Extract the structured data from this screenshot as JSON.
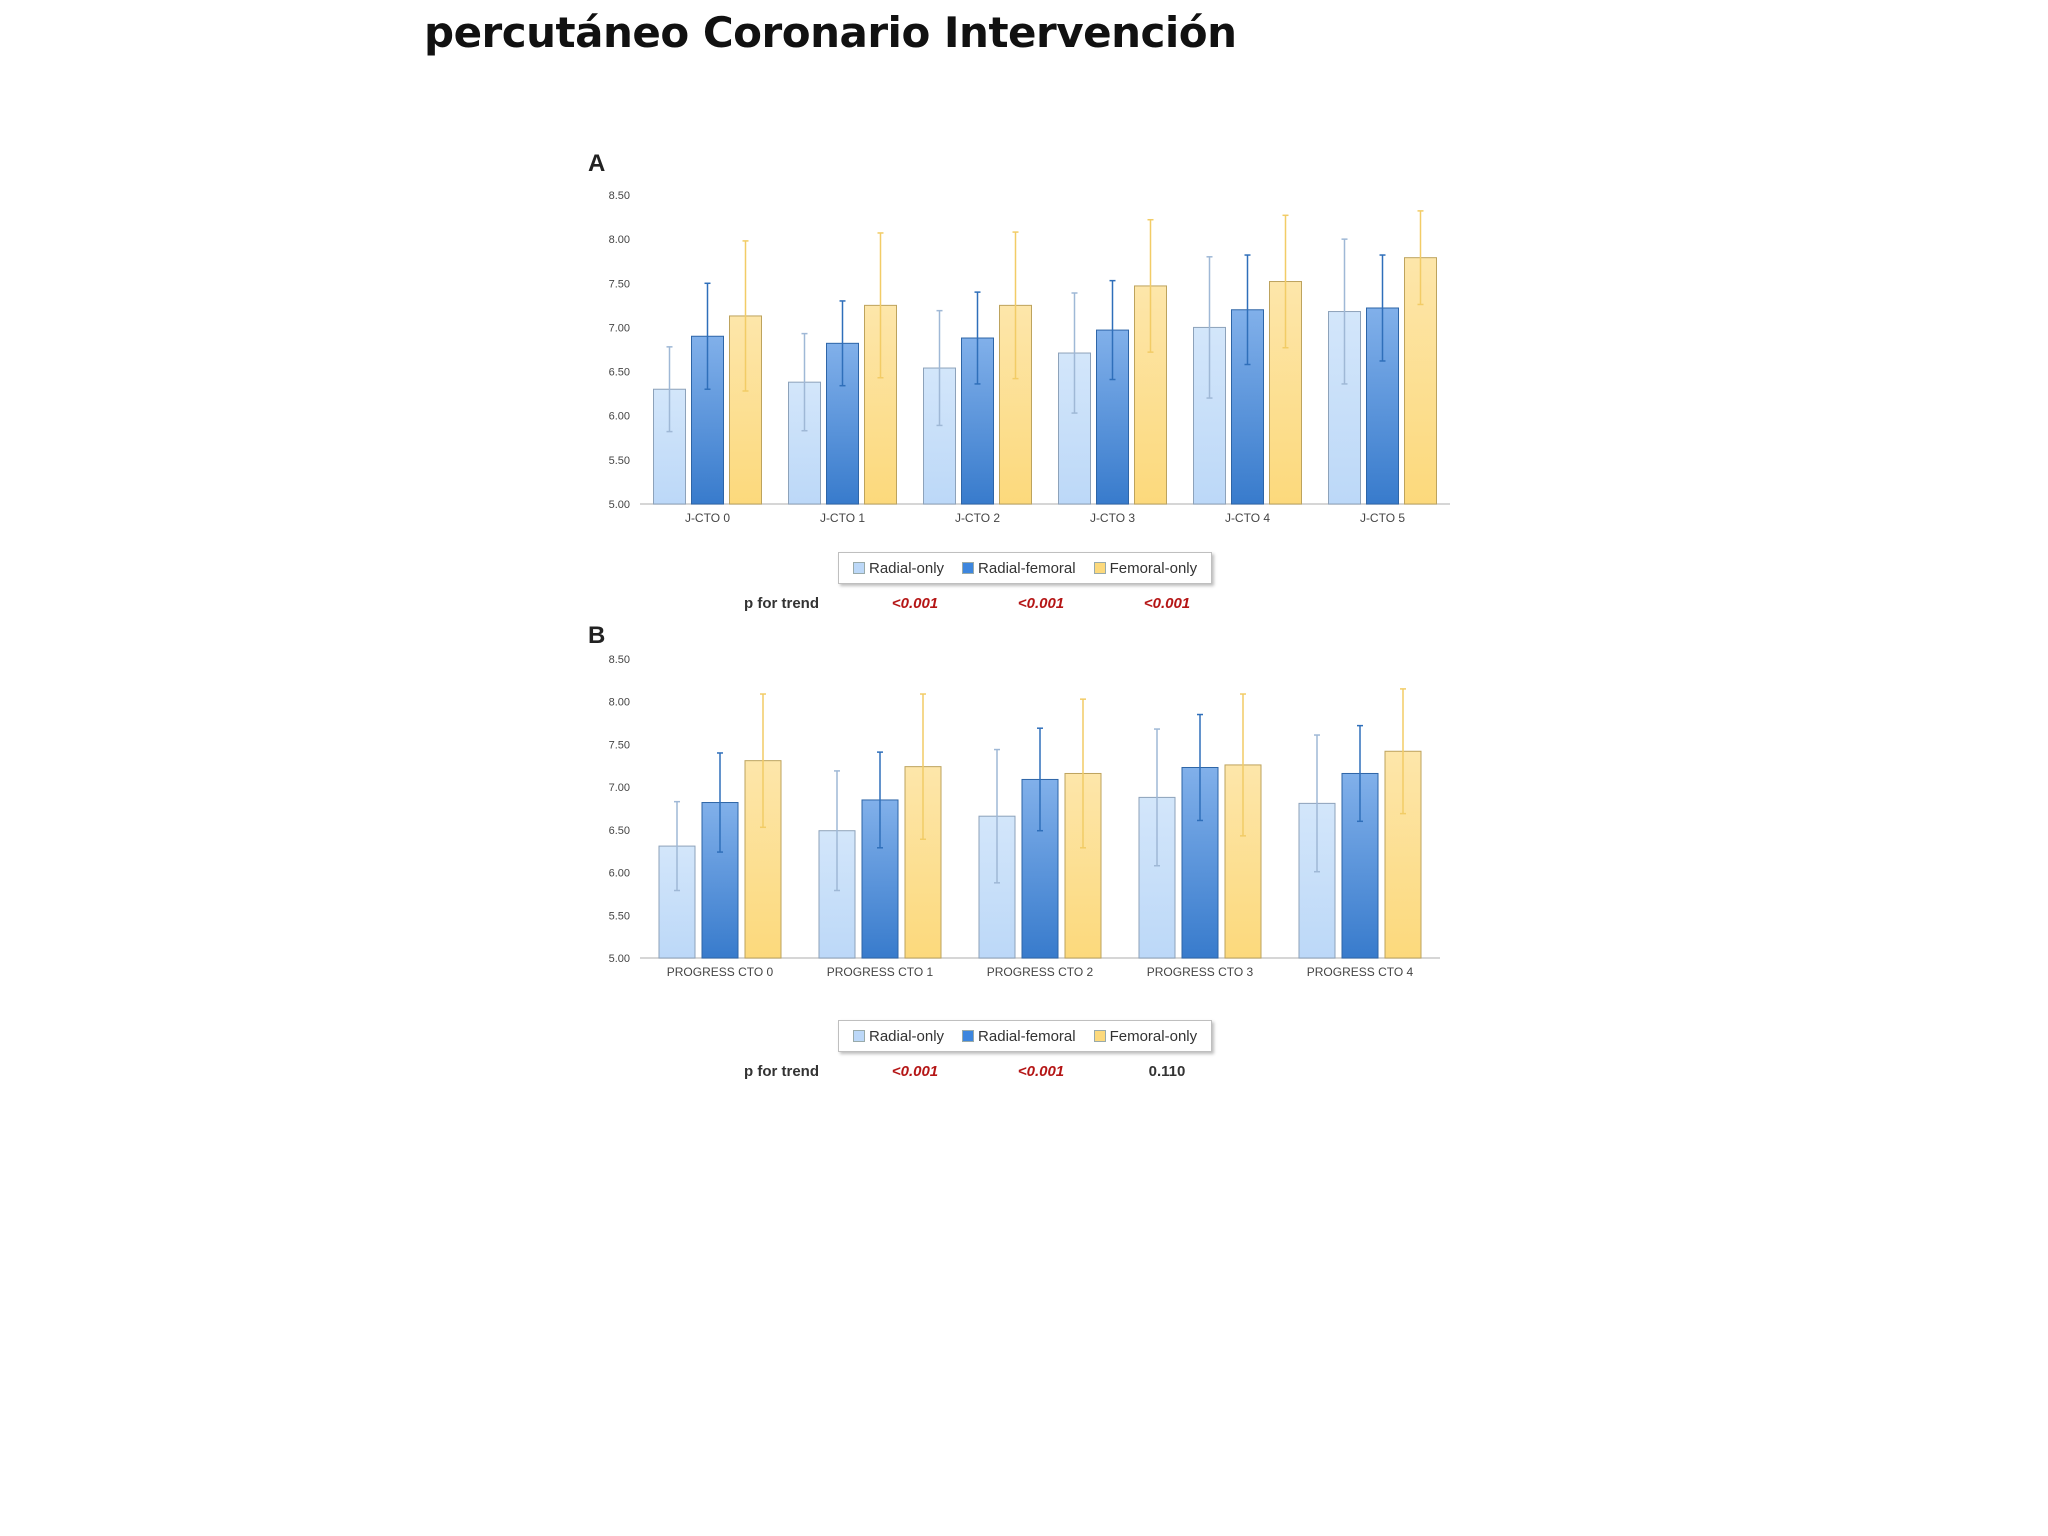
{
  "slide_title": "percutáneo Coronario Intervención",
  "colors": {
    "radial_only": "#bcd8f8",
    "radial_femoral": "#3d86de",
    "femoral_only": "#fcd97c"
  },
  "chart_data": [
    {
      "panel": "A",
      "type": "bar",
      "categories": [
        "J-CTO 0",
        "J-CTO 1",
        "J-CTO 2",
        "J-CTO 3",
        "J-CTO 4",
        "J-CTO 5"
      ],
      "yticks": [
        "5.00",
        "5.50",
        "6.00",
        "6.50",
        "7.00",
        "7.50",
        "8.00",
        "8.50"
      ],
      "ylim": [
        5.0,
        8.5
      ],
      "series": [
        {
          "name": "Radial-only",
          "values": [
            6.3,
            6.38,
            6.54,
            6.71,
            7.0,
            7.18
          ],
          "errors": [
            0.48,
            0.55,
            0.65,
            0.68,
            0.8,
            0.82
          ]
        },
        {
          "name": "Radial-femoral",
          "values": [
            6.9,
            6.82,
            6.88,
            6.97,
            7.2,
            7.22
          ],
          "errors": [
            0.6,
            0.48,
            0.52,
            0.56,
            0.62,
            0.6
          ]
        },
        {
          "name": "Femoral-only",
          "values": [
            7.13,
            7.25,
            7.25,
            7.47,
            7.52,
            7.79
          ],
          "errors": [
            0.85,
            0.82,
            0.83,
            0.75,
            0.75,
            0.53
          ]
        }
      ],
      "legend": [
        "Radial-only",
        "Radial-femoral",
        "Femoral-only"
      ],
      "p_for_trend": {
        "label": "p for trend",
        "values": [
          "<0.001",
          "<0.001",
          "<0.001"
        ]
      }
    },
    {
      "panel": "B",
      "type": "bar",
      "categories": [
        "PROGRESS CTO 0",
        "PROGRESS CTO 1",
        "PROGRESS CTO 2",
        "PROGRESS CTO 3",
        "PROGRESS CTO 4"
      ],
      "yticks": [
        "5.00",
        "5.50",
        "6.00",
        "6.50",
        "7.00",
        "7.50",
        "8.00",
        "8.50"
      ],
      "ylim": [
        5.0,
        8.5
      ],
      "series": [
        {
          "name": "Radial-only",
          "values": [
            6.31,
            6.49,
            6.66,
            6.88,
            6.81
          ],
          "errors": [
            0.52,
            0.7,
            0.78,
            0.8,
            0.8
          ]
        },
        {
          "name": "Radial-femoral",
          "values": [
            6.82,
            6.85,
            7.09,
            7.23,
            7.16
          ],
          "errors": [
            0.58,
            0.56,
            0.6,
            0.62,
            0.56
          ]
        },
        {
          "name": "Femoral-only",
          "values": [
            7.31,
            7.24,
            7.16,
            7.26,
            7.42
          ],
          "errors": [
            0.78,
            0.85,
            0.87,
            0.83,
            0.73
          ]
        }
      ],
      "legend": [
        "Radial-only",
        "Radial-femoral",
        "Femoral-only"
      ],
      "p_for_trend": {
        "label": "p for trend",
        "values": [
          "<0.001",
          "<0.001",
          "0.110"
        ]
      }
    }
  ]
}
